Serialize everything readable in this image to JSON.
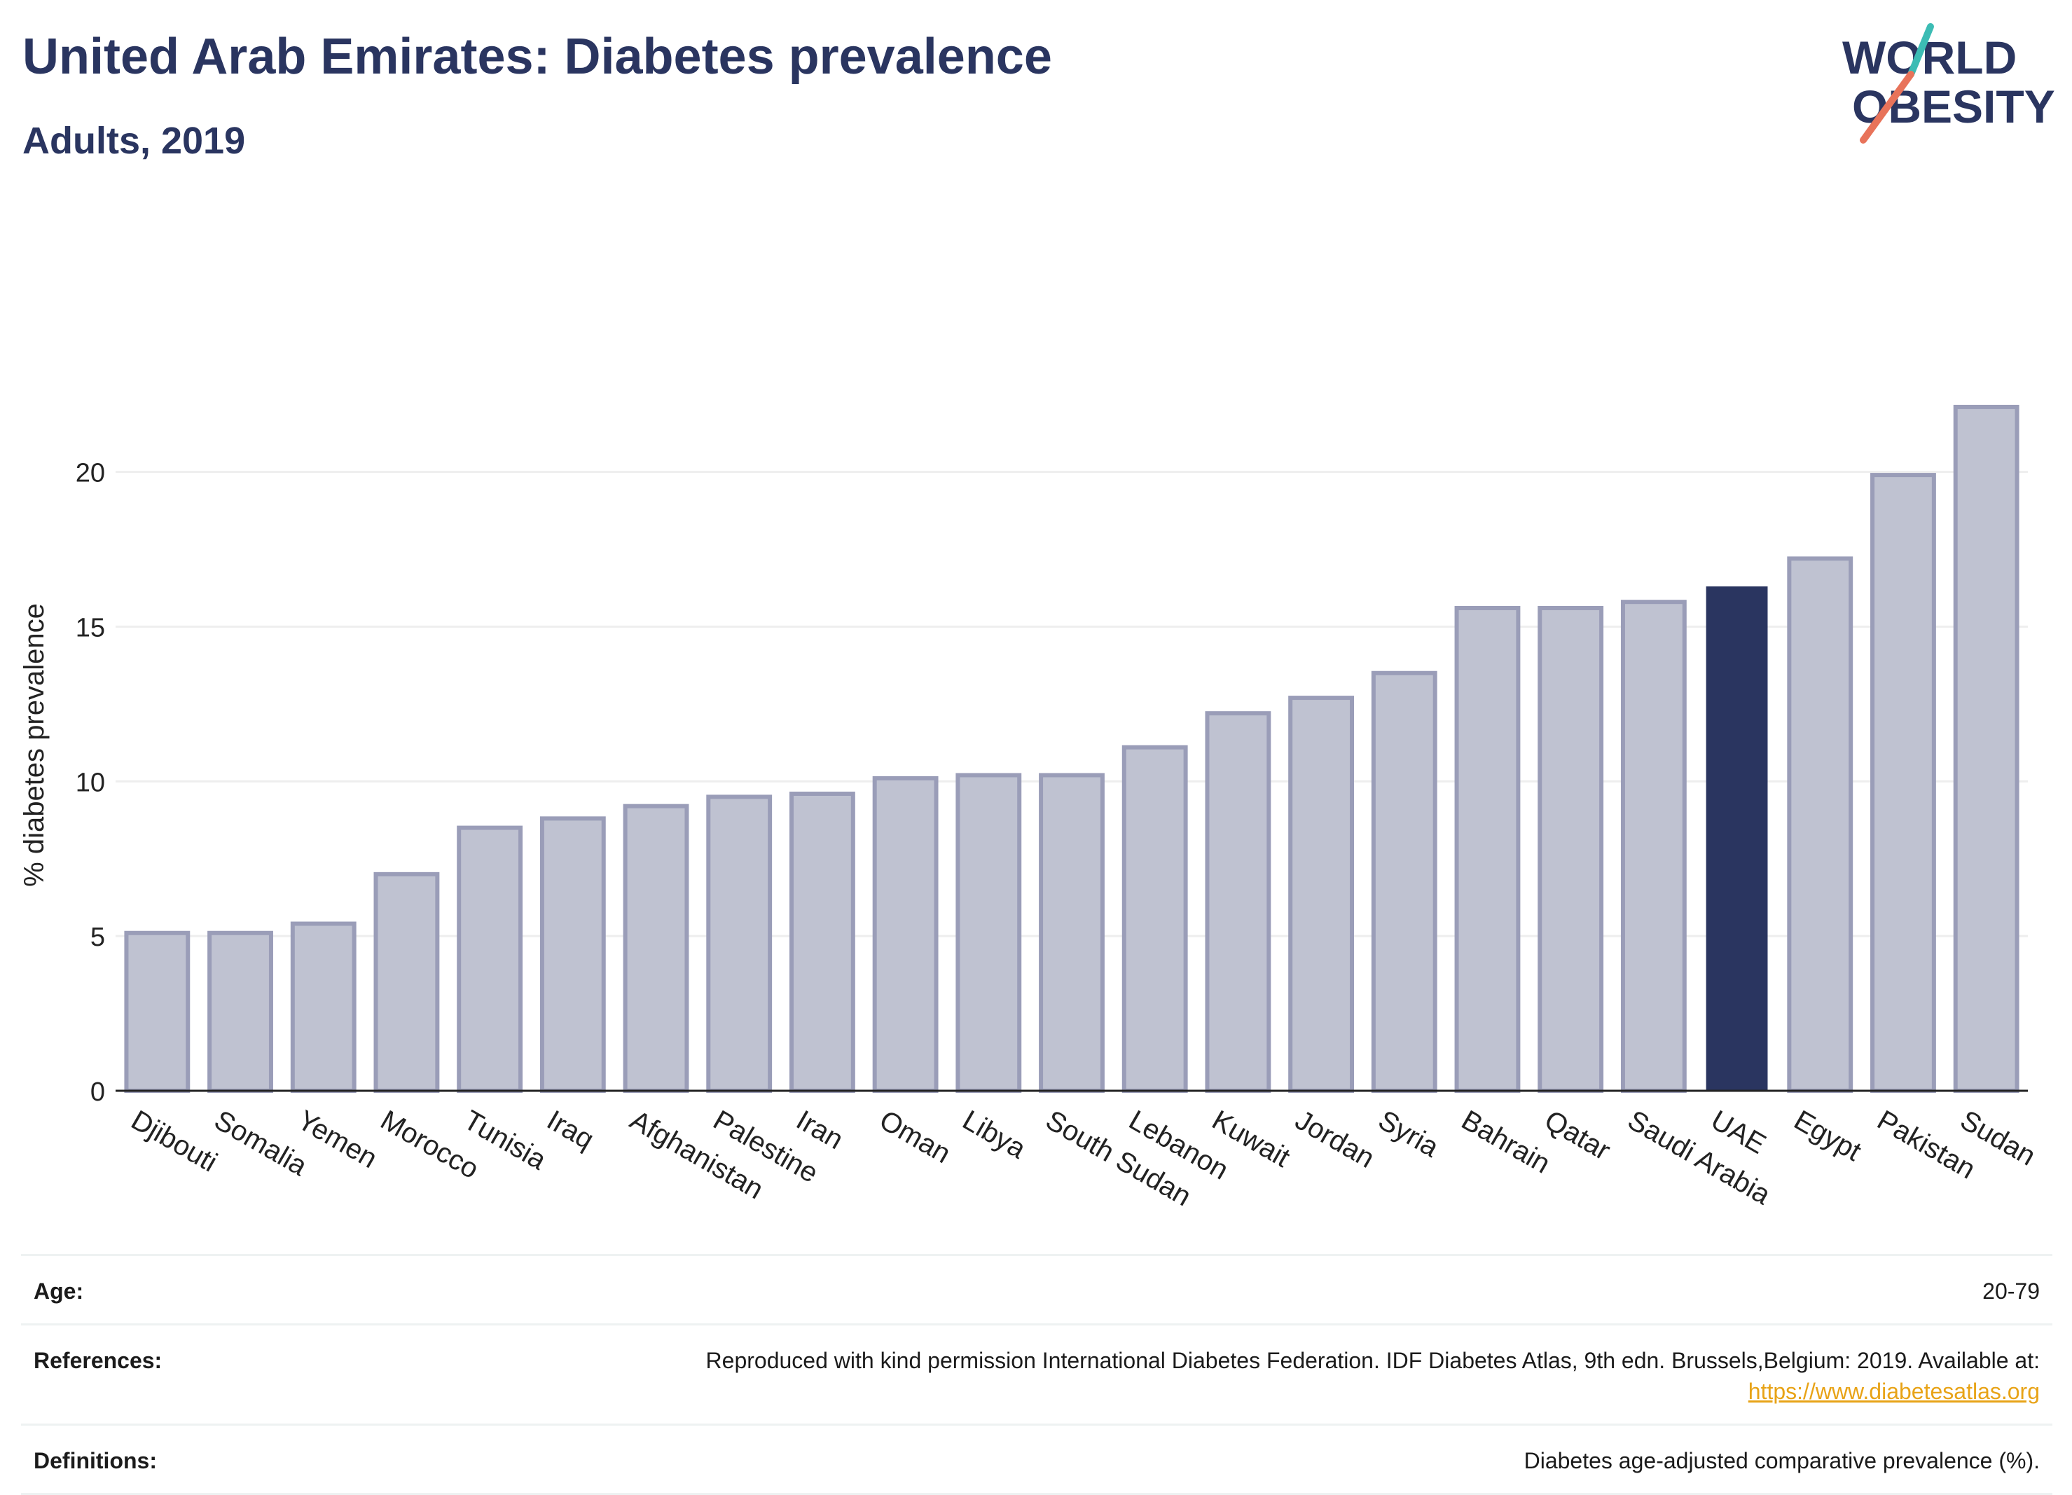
{
  "header": {
    "title": "United Arab Emirates: Diabetes prevalence",
    "subtitle": "Adults, 2019"
  },
  "logo": {
    "line1": "WORLD",
    "line2": "OBESITY",
    "colors": {
      "text": "#2a3560",
      "slash_teal": "#3cbcb4",
      "slash_coral": "#e8735a"
    }
  },
  "colors": {
    "bar": "#bfc2d1",
    "bar_border": "#9a9db8",
    "highlight": "#2a3560",
    "grid": "#eeeeee",
    "axis": "#222222"
  },
  "chart_data": {
    "type": "bar",
    "title": "United Arab Emirates: Diabetes prevalence",
    "subtitle": "Adults, 2019",
    "xlabel": "",
    "ylabel": "% diabetes prevalence",
    "ylim": [
      0,
      22.8
    ],
    "yticks": [
      0,
      5,
      10,
      15,
      20
    ],
    "grid": true,
    "highlight": "UAE",
    "categories": [
      "Djibouti",
      "Somalia",
      "Yemen",
      "Morocco",
      "Tunisia",
      "Iraq",
      "Afghanistan",
      "Palestine",
      "Iran",
      "Oman",
      "Libya",
      "South Sudan",
      "Lebanon",
      "Kuwait",
      "Jordan",
      "Syria",
      "Bahrain",
      "Qatar",
      "Saudi Arabia",
      "UAE",
      "Egypt",
      "Pakistan",
      "Sudan"
    ],
    "values": [
      5.1,
      5.1,
      5.4,
      7.0,
      8.5,
      8.8,
      9.2,
      9.5,
      9.6,
      10.1,
      10.2,
      10.2,
      11.1,
      12.2,
      12.7,
      13.5,
      15.6,
      15.6,
      15.8,
      16.3,
      17.2,
      19.9,
      22.1
    ]
  },
  "meta": {
    "age_label": "Age:",
    "age_value": "20-79",
    "references_label": "References:",
    "references_value": "Reproduced with kind permission International Diabetes Federation. IDF Diabetes Atlas, 9th edn. Brussels,Belgium: 2019. Available at:",
    "references_link": "https://www.diabetesatlas.org",
    "definitions_label": "Definitions:",
    "definitions_value": "Diabetes age-adjusted comparative prevalence (%)."
  }
}
